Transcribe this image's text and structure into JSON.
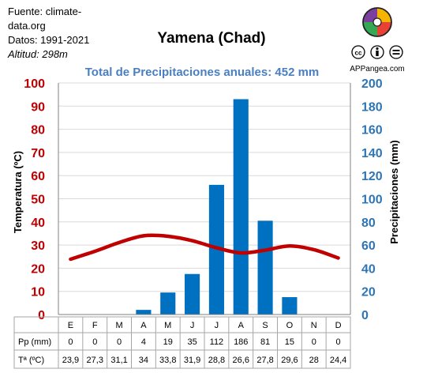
{
  "source": {
    "line1": "Fuente: climate-",
    "line2": "data.org",
    "period": "Datos: 1991-2021",
    "altitude_label": "Altitud: ",
    "altitude_value": "298m"
  },
  "brand": {
    "cc_label": "cc",
    "name": "APPangea.com",
    "colors": [
      "#f4b400",
      "#e94235",
      "#34a853",
      "#7b3fa0"
    ]
  },
  "chart_data": {
    "type": "bar",
    "title": "Yamena (Chad)",
    "subtitle": "Total de Precipitaciones anuales: 452 mm",
    "categories": [
      "E",
      "F",
      "M",
      "A",
      "M",
      "J",
      "J",
      "A",
      "S",
      "O",
      "N",
      "D"
    ],
    "series": [
      {
        "name": "Pp (mm)",
        "type": "bar",
        "axis": "right",
        "color": "#0070c0",
        "values": [
          0,
          0,
          0,
          4,
          19,
          35,
          112,
          186,
          81,
          15,
          0,
          0
        ]
      },
      {
        "name": "Tª (ºC)",
        "type": "line",
        "axis": "left",
        "color": "#c00000",
        "values": [
          23.9,
          27.3,
          31.1,
          34,
          33.8,
          31.9,
          28.8,
          26.6,
          27.8,
          29.6,
          28,
          24.4
        ]
      }
    ],
    "row_labels": {
      "pp": "Pp (mm)",
      "temp": "Tª (ºC)"
    },
    "table_pp": [
      "0",
      "0",
      "0",
      "4",
      "19",
      "35",
      "112",
      "186",
      "81",
      "15",
      "0",
      "0"
    ],
    "table_temp": [
      "23,9",
      "27,3",
      "31,1",
      "34",
      "33,8",
      "31,9",
      "28,8",
      "26,6",
      "27,8",
      "29,6",
      "28",
      "24,4"
    ],
    "ylabel_left": "Temperatura (ºC)",
    "ylabel_right": "Precipitaciones (mm)",
    "ylim_left": [
      0,
      100
    ],
    "ylim_right": [
      0,
      200
    ],
    "yticks_left": [
      "0",
      "10",
      "20",
      "30",
      "40",
      "50",
      "60",
      "70",
      "80",
      "90",
      "100"
    ],
    "yticks_right": [
      "0",
      "20",
      "40",
      "60",
      "80",
      "100",
      "120",
      "140",
      "160",
      "180",
      "200"
    ],
    "grid": true,
    "colors": {
      "bar": "#0070c0",
      "line": "#c00000",
      "left_axis": "#c00000",
      "right_axis": "#2e75b6",
      "grid": "#d9d9d9"
    }
  }
}
